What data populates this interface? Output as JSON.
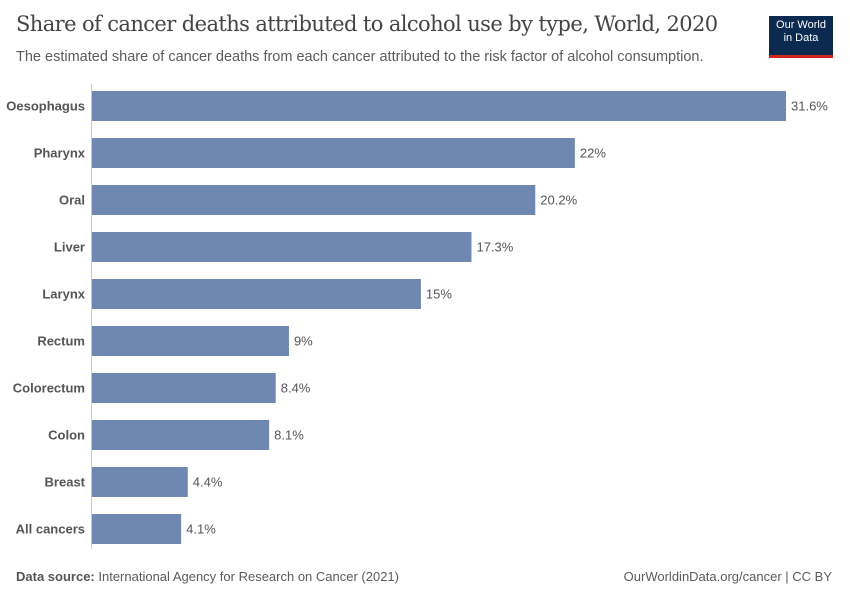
{
  "header": {
    "title": "Share of cancer deaths attributed to alcohol use by type, World, 2020",
    "subtitle": "The estimated share of cancer deaths from each cancer attributed to the risk factor of alcohol consumption.",
    "logo_line1": "Our World",
    "logo_line2": "in Data"
  },
  "footer": {
    "source_label": "Data source:",
    "source_text": "International Agency for Research on Cancer (2021)",
    "credit": "OurWorldinData.org/cancer | CC BY"
  },
  "colors": {
    "bar": "#6e88b2",
    "logo_bg": "#0b2a4f",
    "logo_accent": "#ce261e"
  },
  "chart_data": {
    "type": "bar",
    "orientation": "horizontal",
    "title": "Share of cancer deaths attributed to alcohol use by type, World, 2020",
    "categories": [
      "Oesophagus",
      "Pharynx",
      "Oral",
      "Liver",
      "Larynx",
      "Rectum",
      "Colorectum",
      "Colon",
      "Breast",
      "All cancers"
    ],
    "values": [
      31.6,
      22,
      20.2,
      17.3,
      15,
      9,
      8.4,
      8.1,
      4.4,
      4.1
    ],
    "labels": [
      "31.6%",
      "22%",
      "20.2%",
      "17.3%",
      "15%",
      "9%",
      "8.4%",
      "8.1%",
      "4.4%",
      "4.1%"
    ],
    "unit": "%",
    "xlim": [
      0,
      31.6
    ],
    "grid": false
  }
}
